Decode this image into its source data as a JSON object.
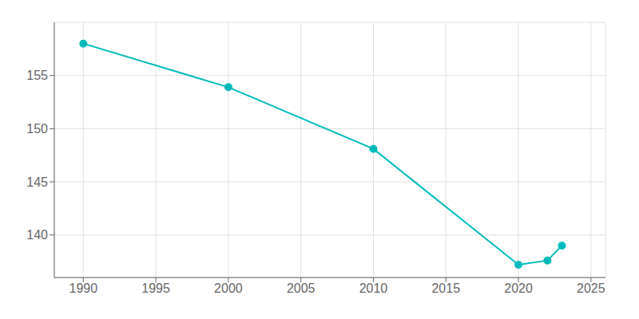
{
  "chart_data": {
    "type": "line",
    "x": [
      1990,
      2000,
      2010,
      2020,
      2022,
      2023
    ],
    "values": [
      158.0,
      153.9,
      148.1,
      137.2,
      137.6,
      139.0
    ],
    "color": "#00BABA",
    "marker": "circle",
    "xlim": [
      1988,
      2026
    ],
    "ylim": [
      136,
      160
    ],
    "xticks": [
      1990,
      1995,
      2000,
      2005,
      2010,
      2015,
      2020,
      2025
    ],
    "yticks": [
      140,
      145,
      150,
      155
    ],
    "grid": true
  }
}
